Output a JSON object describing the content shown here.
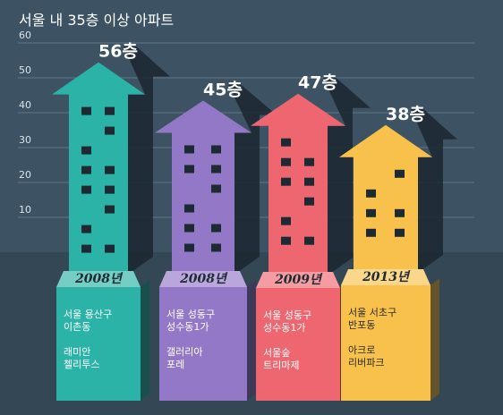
{
  "chart_data": {
    "type": "bar",
    "title": "서울 내 35층 이상 아파트",
    "yticks": [
      10,
      20,
      30,
      40,
      50,
      60
    ],
    "ylim": [
      0,
      60
    ],
    "value_labels": [
      "56층",
      "45층",
      "47층",
      "38층"
    ],
    "values": [
      56,
      45,
      47,
      38
    ],
    "year_labels": [
      "2008년",
      "2008년",
      "2009년",
      "2013년"
    ],
    "location_lines": [
      [
        "서울 용산구",
        "이촌동"
      ],
      [
        "서울 성동구",
        "성수동1가"
      ],
      [
        "서울 성동구",
        "성수동1가"
      ],
      [
        "서울 서초구",
        "반포동"
      ]
    ],
    "name_lines": [
      [
        "래미안",
        "첼리투스"
      ],
      [
        "갤러리아",
        "포레"
      ],
      [
        "서울숲",
        "트리마제"
      ],
      [
        "아크로",
        "리버파크"
      ]
    ],
    "colors": [
      "#2ab3a6",
      "#9378c7",
      "#ee6670",
      "#f7c14b"
    ],
    "info_text_colors": [
      "#ffffff",
      "#ffffff",
      "#ffffff",
      "#2b2b2b"
    ],
    "background": "#3d5363"
  }
}
